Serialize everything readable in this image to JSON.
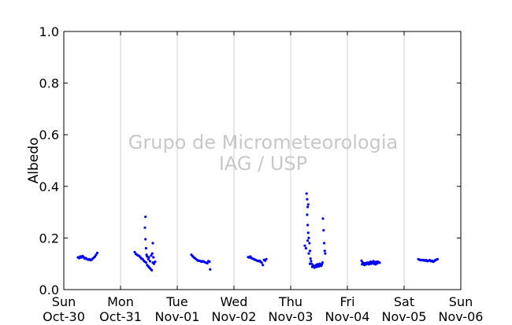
{
  "chart_data": {
    "type": "scatter",
    "title": "",
    "ylabel": "Albedo",
    "xlabel": "",
    "watermark": [
      "Grupo de Micrometeorologia",
      "IAG / USP"
    ],
    "xlim": [
      0,
      7
    ],
    "ylim": [
      0.0,
      1.0
    ],
    "grid": "vertical",
    "series_color": "#0000ff",
    "x_ticks": [
      {
        "x": 0,
        "day": "Sun",
        "date": "Oct-30"
      },
      {
        "x": 1,
        "day": "Mon",
        "date": "Oct-31"
      },
      {
        "x": 2,
        "day": "Tue",
        "date": "Nov-01"
      },
      {
        "x": 3,
        "day": "Wed",
        "date": "Nov-02"
      },
      {
        "x": 4,
        "day": "Thu",
        "date": "Nov-03"
      },
      {
        "x": 5,
        "day": "Fri",
        "date": "Nov-04"
      },
      {
        "x": 6,
        "day": "Sat",
        "date": "Nov-05"
      },
      {
        "x": 7,
        "day": "Sun",
        "date": "Nov-06"
      }
    ],
    "y_ticks": [
      "0.0",
      "0.2",
      "0.4",
      "0.6",
      "0.8",
      "1.0"
    ],
    "points": [
      [
        0.25,
        0.125
      ],
      [
        0.27,
        0.122
      ],
      [
        0.29,
        0.128
      ],
      [
        0.31,
        0.124
      ],
      [
        0.33,
        0.13
      ],
      [
        0.35,
        0.126
      ],
      [
        0.37,
        0.12
      ],
      [
        0.39,
        0.122
      ],
      [
        0.41,
        0.118
      ],
      [
        0.43,
        0.116
      ],
      [
        0.45,
        0.118
      ],
      [
        0.47,
        0.114
      ],
      [
        0.49,
        0.116
      ],
      [
        0.51,
        0.12
      ],
      [
        0.53,
        0.124
      ],
      [
        0.55,
        0.128
      ],
      [
        0.57,
        0.135
      ],
      [
        0.59,
        0.142
      ],
      [
        1.25,
        0.145
      ],
      [
        1.27,
        0.138
      ],
      [
        1.29,
        0.135
      ],
      [
        1.31,
        0.132
      ],
      [
        1.33,
        0.13
      ],
      [
        1.35,
        0.125
      ],
      [
        1.37,
        0.12
      ],
      [
        1.39,
        0.118
      ],
      [
        1.41,
        0.112
      ],
      [
        1.43,
        0.108
      ],
      [
        1.45,
        0.105
      ],
      [
        1.47,
        0.095
      ],
      [
        1.49,
        0.09
      ],
      [
        1.51,
        0.085
      ],
      [
        1.53,
        0.08
      ],
      [
        1.55,
        0.075
      ],
      [
        1.57,
        0.105
      ],
      [
        1.59,
        0.1
      ],
      [
        1.61,
        0.108
      ],
      [
        1.44,
        0.282
      ],
      [
        1.43,
        0.24
      ],
      [
        1.44,
        0.195
      ],
      [
        1.45,
        0.16
      ],
      [
        1.46,
        0.135
      ],
      [
        1.47,
        0.128
      ],
      [
        1.49,
        0.118
      ],
      [
        1.5,
        0.125
      ],
      [
        1.52,
        0.11
      ],
      [
        1.54,
        0.132
      ],
      [
        1.56,
        0.14
      ],
      [
        1.57,
        0.18
      ],
      [
        1.58,
        0.125
      ],
      [
        2.25,
        0.135
      ],
      [
        2.27,
        0.13
      ],
      [
        2.29,
        0.125
      ],
      [
        2.31,
        0.122
      ],
      [
        2.33,
        0.118
      ],
      [
        2.35,
        0.115
      ],
      [
        2.37,
        0.112
      ],
      [
        2.39,
        0.112
      ],
      [
        2.41,
        0.11
      ],
      [
        2.43,
        0.108
      ],
      [
        2.45,
        0.11
      ],
      [
        2.47,
        0.108
      ],
      [
        2.49,
        0.106
      ],
      [
        2.51,
        0.104
      ],
      [
        2.53,
        0.102
      ],
      [
        2.55,
        0.11
      ],
      [
        2.57,
        0.108
      ],
      [
        2.58,
        0.078
      ],
      [
        3.25,
        0.126
      ],
      [
        3.27,
        0.124
      ],
      [
        3.29,
        0.128
      ],
      [
        3.31,
        0.122
      ],
      [
        3.33,
        0.12
      ],
      [
        3.35,
        0.118
      ],
      [
        3.37,
        0.116
      ],
      [
        3.39,
        0.114
      ],
      [
        3.41,
        0.112
      ],
      [
        3.43,
        0.11
      ],
      [
        3.45,
        0.112
      ],
      [
        3.47,
        0.108
      ],
      [
        3.49,
        0.104
      ],
      [
        3.51,
        0.095
      ],
      [
        3.53,
        0.115
      ],
      [
        3.55,
        0.112
      ],
      [
        3.57,
        0.118
      ],
      [
        4.25,
        0.17
      ],
      [
        4.27,
        0.16
      ],
      [
        4.28,
        0.372
      ],
      [
        4.29,
        0.35
      ],
      [
        4.3,
        0.32
      ],
      [
        4.31,
        0.33
      ],
      [
        4.29,
        0.29
      ],
      [
        4.3,
        0.25
      ],
      [
        4.31,
        0.22
      ],
      [
        4.32,
        0.2
      ],
      [
        4.33,
        0.18
      ],
      [
        4.34,
        0.15
      ],
      [
        4.35,
        0.12
      ],
      [
        4.36,
        0.11
      ],
      [
        4.37,
        0.1
      ],
      [
        4.39,
        0.095
      ],
      [
        4.41,
        0.09
      ],
      [
        4.43,
        0.092
      ],
      [
        4.45,
        0.095
      ],
      [
        4.47,
        0.098
      ],
      [
        4.49,
        0.094
      ],
      [
        4.51,
        0.1
      ],
      [
        4.53,
        0.095
      ],
      [
        4.55,
        0.098
      ],
      [
        4.57,
        0.275
      ],
      [
        4.58,
        0.23
      ],
      [
        4.59,
        0.18
      ],
      [
        4.6,
        0.15
      ],
      [
        4.61,
        0.14
      ],
      [
        4.3,
        0.19
      ],
      [
        4.32,
        0.14
      ],
      [
        4.34,
        0.1
      ],
      [
        4.38,
        0.088
      ],
      [
        4.42,
        0.085
      ],
      [
        4.46,
        0.088
      ],
      [
        4.5,
        0.09
      ],
      [
        4.54,
        0.092
      ],
      [
        4.56,
        0.105
      ],
      [
        5.25,
        0.112
      ],
      [
        5.27,
        0.105
      ],
      [
        5.29,
        0.1
      ],
      [
        5.31,
        0.102
      ],
      [
        5.33,
        0.098
      ],
      [
        5.35,
        0.1
      ],
      [
        5.37,
        0.105
      ],
      [
        5.39,
        0.102
      ],
      [
        5.41,
        0.108
      ],
      [
        5.43,
        0.104
      ],
      [
        5.45,
        0.106
      ],
      [
        5.47,
        0.1
      ],
      [
        5.49,
        0.105
      ],
      [
        5.51,
        0.108
      ],
      [
        5.53,
        0.102
      ],
      [
        5.55,
        0.106
      ],
      [
        5.57,
        0.104
      ],
      [
        5.26,
        0.098
      ],
      [
        5.3,
        0.095
      ],
      [
        5.34,
        0.104
      ],
      [
        5.38,
        0.098
      ],
      [
        5.42,
        0.1
      ],
      [
        5.46,
        0.11
      ],
      [
        5.5,
        0.098
      ],
      [
        5.54,
        0.108
      ],
      [
        6.25,
        0.118
      ],
      [
        6.27,
        0.116
      ],
      [
        6.29,
        0.114
      ],
      [
        6.31,
        0.115
      ],
      [
        6.33,
        0.113
      ],
      [
        6.35,
        0.115
      ],
      [
        6.37,
        0.112
      ],
      [
        6.39,
        0.114
      ],
      [
        6.41,
        0.11
      ],
      [
        6.43,
        0.112
      ],
      [
        6.45,
        0.114
      ],
      [
        6.47,
        0.11
      ],
      [
        6.49,
        0.112
      ],
      [
        6.51,
        0.108
      ],
      [
        6.53,
        0.11
      ],
      [
        6.55,
        0.114
      ],
      [
        6.57,
        0.116
      ],
      [
        6.59,
        0.118
      ]
    ]
  }
}
